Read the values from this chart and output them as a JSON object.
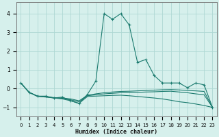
{
  "xlabel": "Humidex (Indice chaleur)",
  "bg_color": "#d6f0ec",
  "grid_color": "#aed8d3",
  "line_color": "#1a7a6e",
  "series": [
    {
      "x": [
        0,
        1,
        2,
        3,
        4,
        5,
        6,
        7,
        8,
        9,
        10,
        11,
        12,
        13,
        14,
        15,
        16,
        17,
        18,
        19,
        20,
        21,
        22,
        23
      ],
      "y": [
        0.3,
        -0.2,
        -0.4,
        -0.4,
        -0.5,
        -0.45,
        -0.65,
        -0.8,
        -0.3,
        0.4,
        4.0,
        3.7,
        4.0,
        3.4,
        1.4,
        1.55,
        0.7,
        0.3,
        0.3,
        0.3,
        0.05,
        0.3,
        0.2,
        -1.0
      ],
      "markers": true
    },
    {
      "x": [
        0,
        1,
        2,
        3,
        4,
        5,
        6,
        7,
        8,
        9,
        10,
        11,
        12,
        13,
        14,
        15,
        16,
        17,
        18,
        19,
        20,
        21,
        22,
        23
      ],
      "y": [
        0.3,
        -0.2,
        -0.4,
        -0.43,
        -0.48,
        -0.5,
        -0.55,
        -0.65,
        -0.35,
        -0.28,
        -0.22,
        -0.18,
        -0.15,
        -0.14,
        -0.12,
        -0.1,
        -0.08,
        -0.06,
        -0.05,
        -0.07,
        -0.1,
        -0.12,
        -0.15,
        -1.0
      ],
      "markers": false
    },
    {
      "x": [
        0,
        1,
        2,
        3,
        4,
        5,
        6,
        7,
        8,
        9,
        10,
        11,
        12,
        13,
        14,
        15,
        16,
        17,
        18,
        19,
        20,
        21,
        22,
        23
      ],
      "y": [
        0.3,
        -0.2,
        -0.4,
        -0.44,
        -0.5,
        -0.52,
        -0.6,
        -0.7,
        -0.38,
        -0.33,
        -0.28,
        -0.25,
        -0.22,
        -0.22,
        -0.2,
        -0.18,
        -0.17,
        -0.15,
        -0.14,
        -0.18,
        -0.22,
        -0.28,
        -0.33,
        -1.0
      ],
      "markers": false
    },
    {
      "x": [
        0,
        1,
        2,
        3,
        4,
        5,
        6,
        7,
        8,
        9,
        10,
        11,
        12,
        13,
        14,
        15,
        16,
        17,
        18,
        19,
        20,
        21,
        22,
        23
      ],
      "y": [
        0.3,
        -0.2,
        -0.42,
        -0.45,
        -0.5,
        -0.55,
        -0.65,
        -0.78,
        -0.42,
        -0.4,
        -0.38,
        -0.36,
        -0.35,
        -0.38,
        -0.42,
        -0.46,
        -0.5,
        -0.55,
        -0.62,
        -0.7,
        -0.75,
        -0.82,
        -0.9,
        -1.0
      ],
      "markers": false
    }
  ],
  "xlim": [
    -0.5,
    23.5
  ],
  "ylim": [
    -1.5,
    4.6
  ],
  "yticks": [
    -1,
    0,
    1,
    2,
    3,
    4
  ],
  "xticks": [
    0,
    1,
    2,
    3,
    4,
    5,
    6,
    7,
    8,
    9,
    10,
    11,
    12,
    13,
    14,
    15,
    16,
    17,
    18,
    19,
    20,
    21,
    22,
    23
  ]
}
